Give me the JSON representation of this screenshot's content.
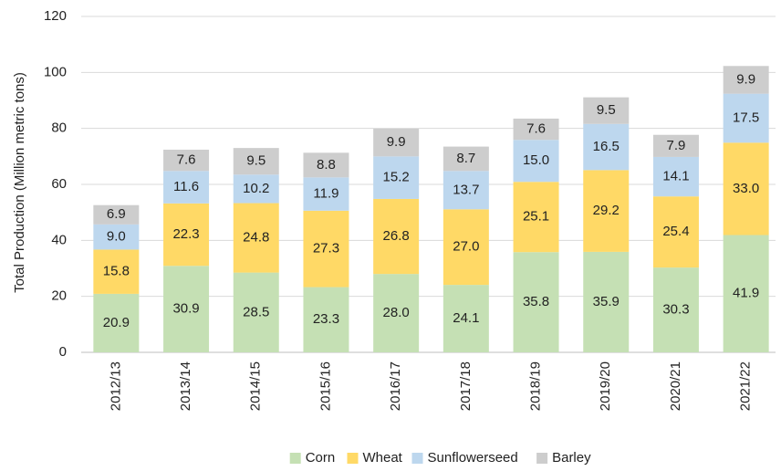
{
  "chart_data": {
    "type": "stacked_bar",
    "y_label": "Total Production (Million metric tons)",
    "categories": [
      "2012/13",
      "2013/14",
      "2014/15",
      "2015/16",
      "2016/17",
      "2017/18",
      "2018/19",
      "2019/20",
      "2020/21",
      "2021/22"
    ],
    "series": [
      {
        "name": "Corn",
        "color": "#c5e0b4",
        "values": [
          20.9,
          30.9,
          28.5,
          23.3,
          28.0,
          24.1,
          35.8,
          35.9,
          30.3,
          41.9
        ],
        "value_labels": [
          "20.9",
          "30.9",
          "28.5",
          "23.3",
          "28.0",
          "24.1",
          "35.8",
          "35.9",
          "30.3",
          "41.9"
        ]
      },
      {
        "name": "Wheat",
        "color": "#ffd966",
        "values": [
          15.8,
          22.3,
          24.8,
          27.3,
          26.8,
          27.0,
          25.1,
          29.2,
          25.4,
          33.0
        ],
        "value_labels": [
          "15.8",
          "22.3",
          "24.8",
          "27.3",
          "26.8",
          "27.0",
          "25.1",
          "29.2",
          "25.4",
          "33.0"
        ]
      },
      {
        "name": "Sunflowerseed",
        "color": "#bdd7ee",
        "values": [
          9.0,
          11.6,
          10.2,
          11.9,
          15.2,
          13.7,
          15.0,
          16.5,
          14.1,
          17.5
        ],
        "value_labels": [
          "9.0",
          "11.6",
          "10.2",
          "11.9",
          "15.2",
          "13.7",
          "15.0",
          "16.5",
          "14.1",
          "17.5"
        ]
      },
      {
        "name": "Barley",
        "color": "#cdcdcd",
        "values": [
          6.9,
          7.6,
          9.5,
          8.8,
          9.9,
          8.7,
          7.6,
          9.5,
          7.9,
          9.9
        ],
        "value_labels": [
          "6.9",
          "7.6",
          "9.5",
          "8.8",
          "9.9",
          "8.7",
          "7.6",
          "9.5",
          "7.9",
          "9.9"
        ]
      }
    ],
    "ylim": [
      0,
      120
    ],
    "yticks": [
      0,
      20,
      40,
      60,
      80,
      100,
      120
    ],
    "grid": true,
    "legend": "bottom"
  }
}
